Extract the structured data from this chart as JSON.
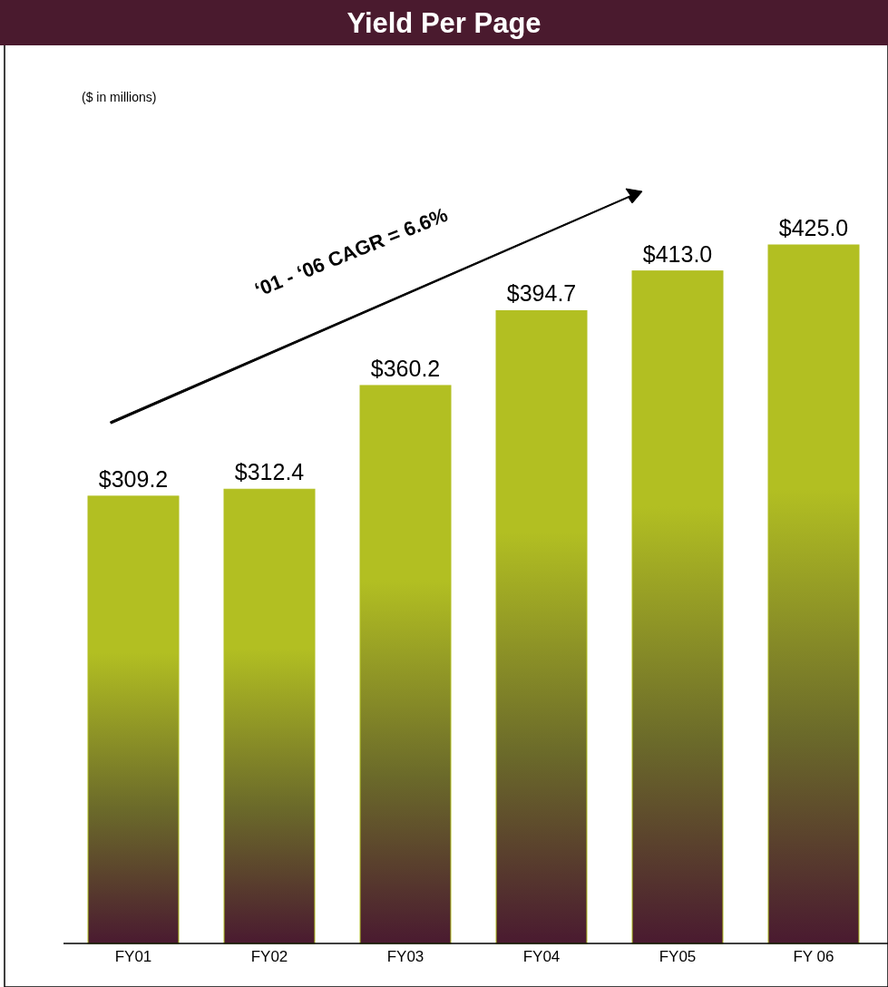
{
  "chart_data": {
    "type": "bar",
    "title": "Yield Per Page",
    "subtitle": "($ in millions)",
    "annotations": [
      "‘01 - ‘06 CAGR = 6.6%"
    ],
    "categories": [
      "FY01",
      "FY02",
      "FY03",
      "FY04",
      "FY05",
      "FY 06"
    ],
    "values": [
      309.2,
      312.4,
      360.2,
      394.7,
      413.0,
      425.0
    ],
    "value_labels": [
      "$309.2",
      "$312.4",
      "$360.2",
      "$394.7",
      "$413.0",
      "$425.0"
    ],
    "color": "#b2bf22",
    "ylim": [
      103,
      425
    ]
  }
}
